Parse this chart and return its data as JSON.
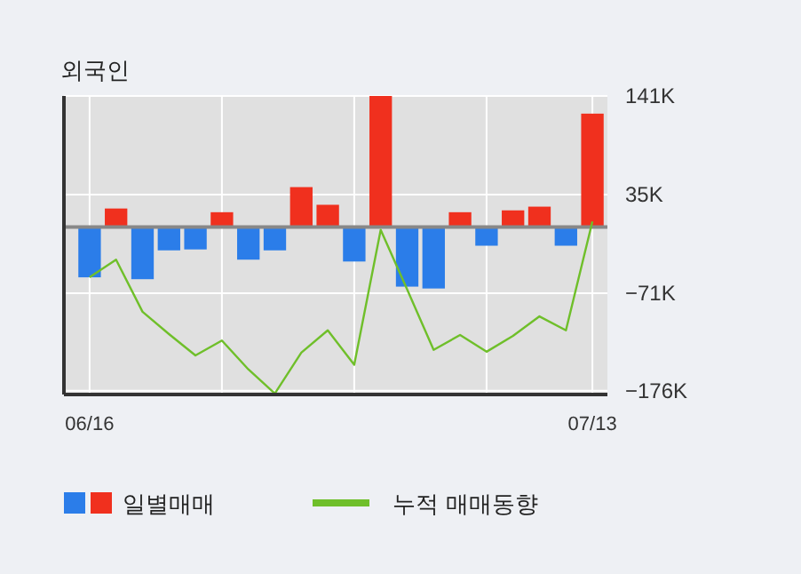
{
  "chart_data": {
    "type": "bar",
    "title": "외국인",
    "categories": [
      "06/16",
      null,
      null,
      null,
      null,
      null,
      null,
      null,
      null,
      null,
      null,
      null,
      null,
      null,
      null,
      null,
      null,
      null,
      null,
      "07/13"
    ],
    "series": [
      {
        "name": "일별매매",
        "colors": [
          "#2b7de9",
          "#f0301e",
          "#2b7de9",
          "#2b7de9",
          "#2b7de9",
          "#f0301e",
          "#2b7de9",
          "#2b7de9",
          "#f0301e",
          "#f0301e",
          "#2b7de9",
          "#f0301e",
          "#2b7de9",
          "#2b7de9",
          "#f0301e",
          "#2b7de9",
          "#f0301e",
          "#f0301e",
          "#2b7de9",
          "#f0301e"
        ],
        "values": [
          -54,
          20,
          -56,
          -25,
          -24,
          16,
          -35,
          -25,
          43,
          24,
          -37,
          141,
          -64,
          -66,
          16,
          -20,
          18,
          22,
          -20,
          122
        ]
      },
      {
        "name": "누적 매매동향",
        "type": "line",
        "color": "#6fbf2a",
        "values": [
          -54,
          -35,
          -91,
          -115,
          -138,
          -122,
          -153,
          -179,
          -135,
          -111,
          -148,
          -3,
          -67,
          -132,
          -116,
          -134,
          -117,
          -96,
          -111,
          6
        ]
      }
    ],
    "ylim": [
      -180,
      141
    ],
    "yticks": [
      {
        "value": 141,
        "label": "141K"
      },
      {
        "value": 35,
        "label": "35K"
      },
      {
        "value": -71,
        "label": "−71K"
      },
      {
        "value": -176,
        "label": "−176K"
      }
    ],
    "grid": true,
    "legend": "bottom"
  }
}
